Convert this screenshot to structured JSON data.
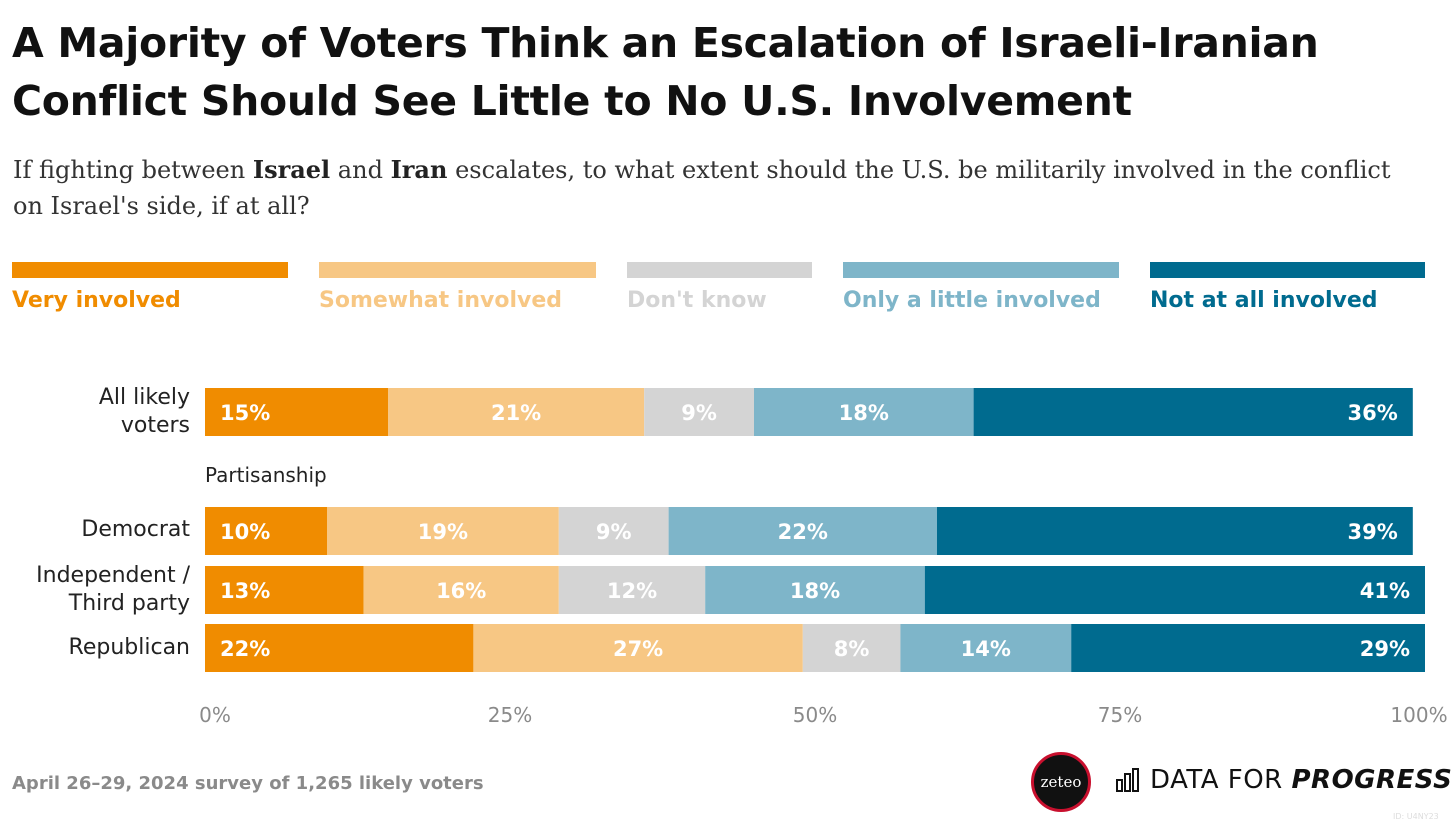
{
  "title": "A Majority of Voters Think an Escalation of Israeli-Iranian Conflict Should See Little to No U.S. Involvement",
  "subtitle": {
    "pre": "If fighting between ",
    "israel": "Israel",
    "and": " and ",
    "iran": "Iran",
    "post": " escalates, to what extent should the U.S. be militarily involved in the conflict on Israel's side, if at all?"
  },
  "legend": [
    {
      "label": "Very involved",
      "color": "#f08c00"
    },
    {
      "label": "Somewhat involved",
      "color": "#f7c784"
    },
    {
      "label": "Don't know",
      "color": "#d4d4d4"
    },
    {
      "label": "Only a little involved",
      "color": "#7eb5c9"
    },
    {
      "label": "Not at all involved",
      "color": "#006b8f"
    }
  ],
  "partisanship_label": "Partisanship",
  "row_labels": {
    "all": [
      "All likely",
      "voters"
    ],
    "democrat": [
      "Democrat"
    ],
    "independent": [
      "Independent /",
      "Third party"
    ],
    "republican": [
      "Republican"
    ]
  },
  "footnote": "April 26–29, 2024 survey of 1,265 likely voters",
  "logos": {
    "zeteo": "zeteo",
    "dfp_regular": "DATA FOR ",
    "dfp_bold": "PROGRESS",
    "chart_id": "ID: U4NY23"
  },
  "chart_data": {
    "type": "bar",
    "orientation": "horizontal",
    "stacked": true,
    "categories": [
      "All likely voters",
      "Democrat",
      "Independent / Third party",
      "Republican"
    ],
    "series": [
      {
        "name": "Very involved",
        "color": "#f08c00",
        "values": [
          15,
          10,
          13,
          22
        ]
      },
      {
        "name": "Somewhat involved",
        "color": "#f7c784",
        "values": [
          21,
          19,
          16,
          27
        ]
      },
      {
        "name": "Don't know",
        "color": "#d4d4d4",
        "values": [
          9,
          9,
          12,
          8
        ]
      },
      {
        "name": "Only a little involved",
        "color": "#7eb5c9",
        "values": [
          18,
          22,
          18,
          14
        ]
      },
      {
        "name": "Not at all involved",
        "color": "#006b8f",
        "values": [
          36,
          39,
          41,
          29
        ]
      }
    ],
    "x_ticks": [
      "0%",
      "25%",
      "50%",
      "75%",
      "100%"
    ],
    "xlim": [
      0,
      100
    ],
    "grid": false,
    "legend_position": "top"
  }
}
